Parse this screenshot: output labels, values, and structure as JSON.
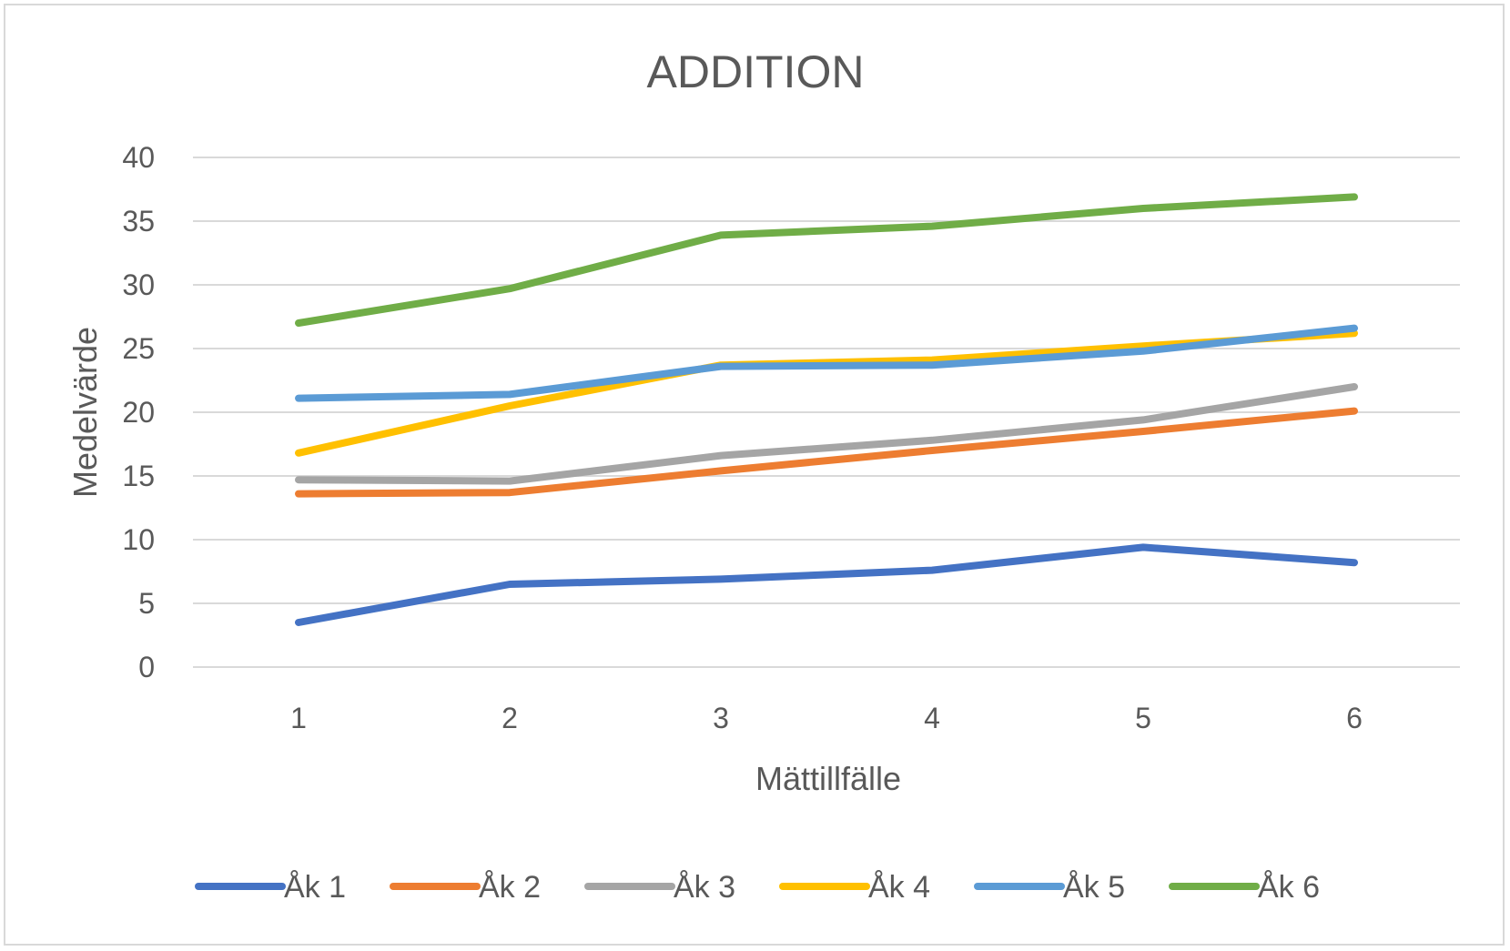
{
  "chart_data": {
    "type": "line",
    "title": "ADDITION",
    "xlabel": "Mättillfälle",
    "ylabel": "Medelvärde",
    "categories": [
      "1",
      "2",
      "3",
      "4",
      "5",
      "6"
    ],
    "ylim": [
      0,
      40
    ],
    "yticks": [
      "0",
      "5",
      "10",
      "15",
      "20",
      "25",
      "30",
      "35",
      "40"
    ],
    "grid": true,
    "legend_position": "bottom",
    "series": [
      {
        "name": "Åk 1",
        "color": "#4472c4",
        "values": [
          3.5,
          6.5,
          6.9,
          7.6,
          9.4,
          8.2
        ]
      },
      {
        "name": "Åk 2",
        "color": "#ed7d31",
        "values": [
          13.6,
          13.7,
          15.4,
          17.0,
          18.5,
          20.1
        ]
      },
      {
        "name": "Åk 3",
        "color": "#a5a5a5",
        "values": [
          14.7,
          14.6,
          16.6,
          17.8,
          19.4,
          22.0
        ]
      },
      {
        "name": "Åk 4",
        "color": "#ffc000",
        "values": [
          16.8,
          20.5,
          23.7,
          24.1,
          25.2,
          26.2
        ]
      },
      {
        "name": "Åk 5",
        "color": "#5b9bd5",
        "values": [
          21.1,
          21.4,
          23.6,
          23.7,
          24.8,
          26.6
        ]
      },
      {
        "name": "Åk 6",
        "color": "#70ad47",
        "values": [
          27.0,
          29.7,
          33.9,
          34.6,
          36.0,
          36.9
        ]
      }
    ]
  }
}
